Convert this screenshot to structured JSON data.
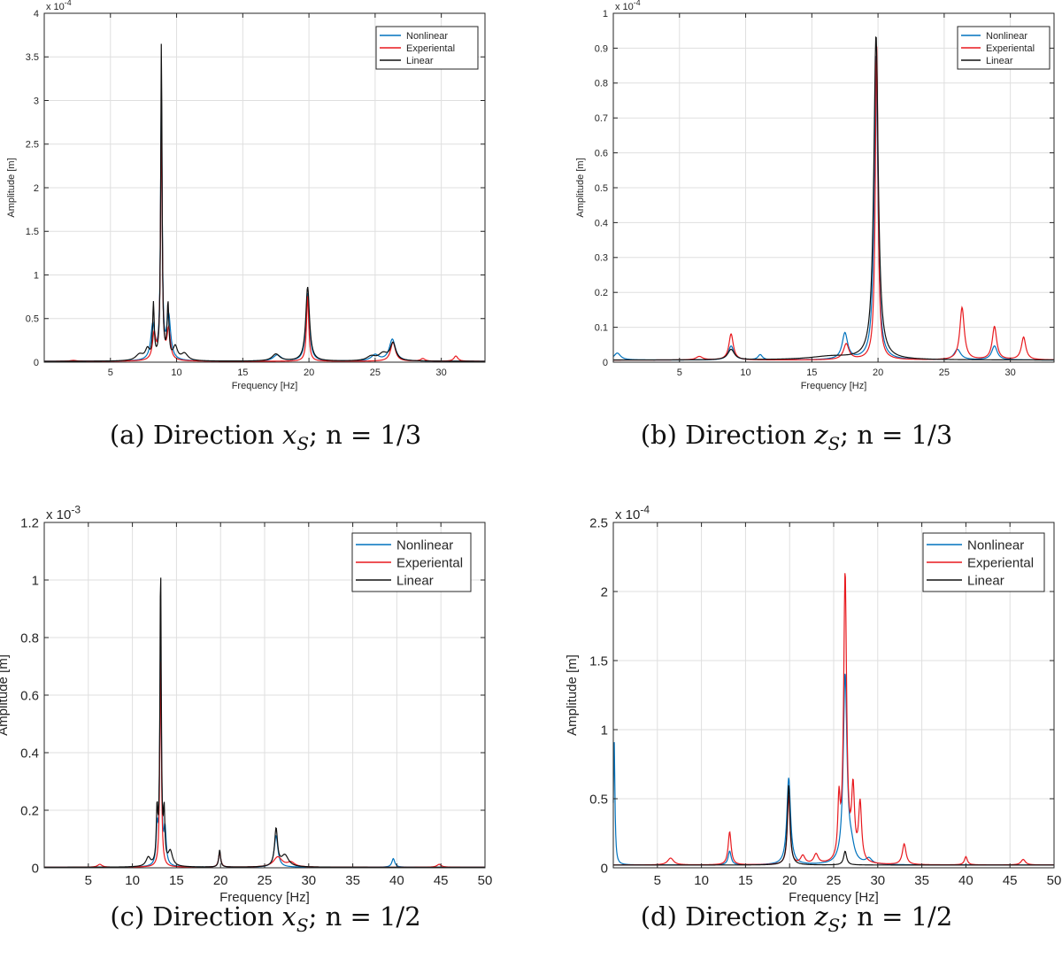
{
  "chart_data": [
    {
      "id": "a",
      "type": "line",
      "caption": {
        "label": "(a) Direction",
        "var": "x",
        "sub": "S",
        "tail": "; n = 1/3"
      },
      "xlabel": "Frequency [Hz]",
      "ylabel": "Amplitude [m]",
      "exponent": {
        "base": "x 10",
        "power": "-4"
      },
      "xlim": [
        0,
        33.3
      ],
      "ylim": [
        0,
        4
      ],
      "xticks": [
        5,
        10,
        15,
        20,
        25,
        30
      ],
      "yticks": [
        0,
        0.5,
        1,
        1.5,
        2,
        2.5,
        3,
        3.5,
        4
      ],
      "ytick_labels": [
        "0",
        "0.5",
        "1",
        "1.5",
        "2",
        "2.5",
        "3",
        "3.5",
        "4"
      ],
      "grid": true,
      "legend_position": "top-right",
      "base": 0.01,
      "series": [
        {
          "name": "Nonlinear",
          "color": "#0072BD",
          "peaks": [
            [
              8.2,
              0.4,
              0.18
            ],
            [
              8.85,
              3.05,
              0.07
            ],
            [
              9.4,
              0.5,
              0.18
            ],
            [
              17.6,
              0.07,
              0.35
            ],
            [
              19.9,
              0.78,
              0.16
            ],
            [
              25,
              0.07,
              0.35
            ],
            [
              26.3,
              0.25,
              0.28
            ]
          ]
        },
        {
          "name": "Experiental",
          "color": "#E8191E",
          "peaks": [
            [
              8.3,
              0.3,
              0.15
            ],
            [
              8.85,
              2.8,
              0.07
            ],
            [
              9.4,
              0.35,
              0.15
            ],
            [
              19.9,
              0.75,
              0.1
            ],
            [
              26.35,
              0.22,
              0.22
            ],
            [
              28.6,
              0.03,
              0.2
            ],
            [
              31.1,
              0.06,
              0.18
            ],
            [
              2.2,
              0.01,
              0.3
            ]
          ]
        },
        {
          "name": "Linear",
          "color": "#111111",
          "peaks": [
            [
              7.2,
              0.07,
              0.35
            ],
            [
              7.8,
              0.12,
              0.2
            ],
            [
              8.25,
              0.62,
              0.07
            ],
            [
              8.85,
              3.65,
              0.06
            ],
            [
              9.35,
              0.62,
              0.08
            ],
            [
              9.9,
              0.15,
              0.2
            ],
            [
              10.6,
              0.08,
              0.3
            ],
            [
              17.5,
              0.08,
              0.35
            ],
            [
              19.9,
              0.85,
              0.17
            ],
            [
              24.7,
              0.05,
              0.4
            ],
            [
              25.6,
              0.08,
              0.4
            ],
            [
              26.35,
              0.2,
              0.25
            ]
          ]
        }
      ]
    },
    {
      "id": "b",
      "type": "line",
      "caption": {
        "label": "(b) Direction",
        "var": "z",
        "sub": "S",
        "tail": "; n = 1/3"
      },
      "xlabel": "Frequency [Hz]",
      "ylabel": "Amplitude [m]",
      "exponent": {
        "base": "x 10",
        "power": "-4"
      },
      "xlim": [
        0,
        33.3
      ],
      "ylim": [
        0,
        1
      ],
      "xticks": [
        5,
        10,
        15,
        20,
        25,
        30
      ],
      "yticks": [
        0,
        0.1,
        0.2,
        0.3,
        0.4,
        0.5,
        0.6,
        0.7,
        0.8,
        0.9,
        1
      ],
      "ytick_labels": [
        "0",
        "0.1",
        "0.2",
        "0.3",
        "0.4",
        "0.5",
        "0.6",
        "0.7",
        "0.8",
        "0.9",
        "1"
      ],
      "grid": true,
      "legend_position": "top-right",
      "base": 0.006,
      "series": [
        {
          "name": "Nonlinear",
          "color": "#0072BD",
          "peaks": [
            [
              0.3,
              0.02,
              0.3
            ],
            [
              8.9,
              0.04,
              0.25
            ],
            [
              11.1,
              0.015,
              0.2
            ],
            [
              17.5,
              0.075,
              0.25
            ],
            [
              19.85,
              0.88,
              0.16
            ],
            [
              26,
              0.03,
              0.3
            ],
            [
              28.8,
              0.04,
              0.25
            ]
          ]
        },
        {
          "name": "Experiental",
          "color": "#E8191E",
          "peaks": [
            [
              8.9,
              0.075,
              0.2
            ],
            [
              6.5,
              0.01,
              0.3
            ],
            [
              17.6,
              0.045,
              0.25
            ],
            [
              19.9,
              0.9,
              0.12
            ],
            [
              26.35,
              0.15,
              0.2
            ],
            [
              28.8,
              0.095,
              0.2
            ],
            [
              31,
              0.065,
              0.2
            ]
          ]
        },
        {
          "name": "Linear",
          "color": "#111111",
          "peaks": [
            [
              8.9,
              0.03,
              0.3
            ],
            [
              19.85,
              0.93,
              0.2
            ],
            [
              16.5,
              0.01,
              2.0
            ]
          ]
        }
      ]
    },
    {
      "id": "c",
      "type": "line",
      "caption": {
        "label": "(c) Direction",
        "var": "x",
        "sub": "S",
        "tail": "; n = 1/2"
      },
      "xlabel": "Frequency [Hz]",
      "ylabel": "Amplitude [m]",
      "exponent": {
        "base": "x 10",
        "power": "-3"
      },
      "xlim": [
        0,
        50
      ],
      "ylim": [
        0,
        1.2
      ],
      "xticks": [
        5,
        10,
        15,
        20,
        25,
        30,
        35,
        40,
        45,
        50
      ],
      "yticks": [
        0,
        0.2,
        0.4,
        0.6,
        0.8,
        1,
        1.2
      ],
      "ytick_labels": [
        "0",
        "0.2",
        "0.4",
        "0.6",
        "0.8",
        "1",
        "1.2"
      ],
      "grid": true,
      "legend_position": "top-right",
      "base": 0.002,
      "series": [
        {
          "name": "Nonlinear",
          "color": "#0072BD",
          "peaks": [
            [
              12.8,
              0.12,
              0.12
            ],
            [
              13.2,
              0.82,
              0.1
            ],
            [
              13.7,
              0.12,
              0.15
            ],
            [
              19.9,
              0.05,
              0.15
            ],
            [
              26.3,
              0.11,
              0.25
            ],
            [
              39.6,
              0.03,
              0.2
            ]
          ]
        },
        {
          "name": "Experiental",
          "color": "#E8191E",
          "peaks": [
            [
              6.3,
              0.01,
              0.3
            ],
            [
              13.2,
              0.75,
              0.1
            ],
            [
              19.9,
              0.05,
              0.15
            ],
            [
              26.5,
              0.035,
              0.6
            ],
            [
              28,
              0.015,
              0.5
            ],
            [
              44.8,
              0.01,
              0.3
            ]
          ]
        },
        {
          "name": "Linear",
          "color": "#111111",
          "peaks": [
            [
              11.8,
              0.03,
              0.3
            ],
            [
              12.8,
              0.18,
              0.1
            ],
            [
              13.2,
              1.04,
              0.09
            ],
            [
              13.6,
              0.17,
              0.1
            ],
            [
              14.3,
              0.05,
              0.3
            ],
            [
              19.9,
              0.06,
              0.12
            ],
            [
              26.3,
              0.13,
              0.2
            ],
            [
              27.3,
              0.04,
              0.5
            ]
          ]
        }
      ]
    },
    {
      "id": "d",
      "type": "line",
      "caption": {
        "label": "(d) Direction",
        "var": "z",
        "sub": "S",
        "tail": "; n = 1/2"
      },
      "xlabel": "Frequency [Hz]",
      "ylabel": "Amplitude [m]",
      "exponent": {
        "base": "x 10",
        "power": "-4"
      },
      "xlim": [
        0,
        50
      ],
      "ylim": [
        0,
        2.5
      ],
      "xticks": [
        5,
        10,
        15,
        20,
        25,
        30,
        35,
        40,
        45,
        50
      ],
      "yticks": [
        0,
        0.5,
        1,
        1.5,
        2,
        2.5
      ],
      "ytick_labels": [
        "0",
        "0.5",
        "1",
        "1.5",
        "2",
        "2.5"
      ],
      "grid": true,
      "legend_position": "top-right",
      "base": 0.02,
      "series": [
        {
          "name": "Nonlinear",
          "color": "#0072BD",
          "peaks": [
            [
              0.1,
              0.9,
              0.1
            ],
            [
              13.2,
              0.1,
              0.2
            ],
            [
              19.9,
              0.63,
              0.25
            ],
            [
              26.3,
              1.37,
              0.25
            ],
            [
              27,
              0.1,
              0.4
            ],
            [
              29,
              0.04,
              0.4
            ]
          ]
        },
        {
          "name": "Experiental",
          "color": "#E8191E",
          "peaks": [
            [
              6.5,
              0.05,
              0.4
            ],
            [
              13.2,
              0.24,
              0.2
            ],
            [
              19.9,
              0.5,
              0.18
            ],
            [
              25.6,
              0.4,
              0.15
            ],
            [
              26.3,
              2.09,
              0.2
            ],
            [
              27.2,
              0.5,
              0.2
            ],
            [
              28,
              0.42,
              0.2
            ],
            [
              33,
              0.15,
              0.25
            ],
            [
              40,
              0.06,
              0.2
            ],
            [
              46.5,
              0.04,
              0.3
            ],
            [
              21.5,
              0.06,
              0.3
            ],
            [
              23,
              0.07,
              0.3
            ]
          ]
        },
        {
          "name": "Linear",
          "color": "#111111",
          "peaks": [
            [
              19.9,
              0.58,
              0.18
            ],
            [
              26.3,
              0.1,
              0.2
            ]
          ]
        }
      ]
    }
  ]
}
